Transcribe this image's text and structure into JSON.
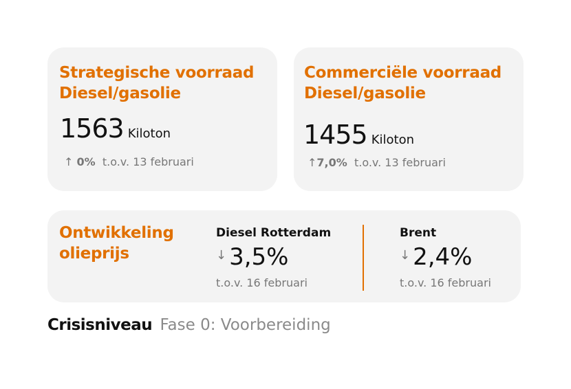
{
  "strategic": {
    "title_line1": "Strategische voorraad",
    "title_line2": "Diesel/gasolie",
    "value": "1563",
    "unit": "Kiloton",
    "arrow": "↑",
    "change": "0%",
    "compare": "t.o.v. 13 februari"
  },
  "commercial": {
    "title_line1": "Commerciële voorraad",
    "title_line2": "Diesel/gasolie",
    "value": "1455",
    "unit": "Kiloton",
    "arrow": "↑",
    "change": "7,0%",
    "compare": "t.o.v. 13 februari"
  },
  "oil": {
    "title_line1": "Ontwikkeling",
    "title_line2": "olieprijs",
    "items": [
      {
        "label": "Diesel Rotterdam",
        "arrow": "↓",
        "change": "3,5%",
        "compare": "t.o.v. 16 februari"
      },
      {
        "label": "Brent",
        "arrow": "↓",
        "change": "2,4%",
        "compare": "t.o.v. 16 februari"
      }
    ]
  },
  "crisis": {
    "label": "Crisisniveau",
    "value": "Fase 0: Voorbereiding"
  },
  "colors": {
    "accent": "#e17000",
    "card": "#f3f3f3"
  }
}
